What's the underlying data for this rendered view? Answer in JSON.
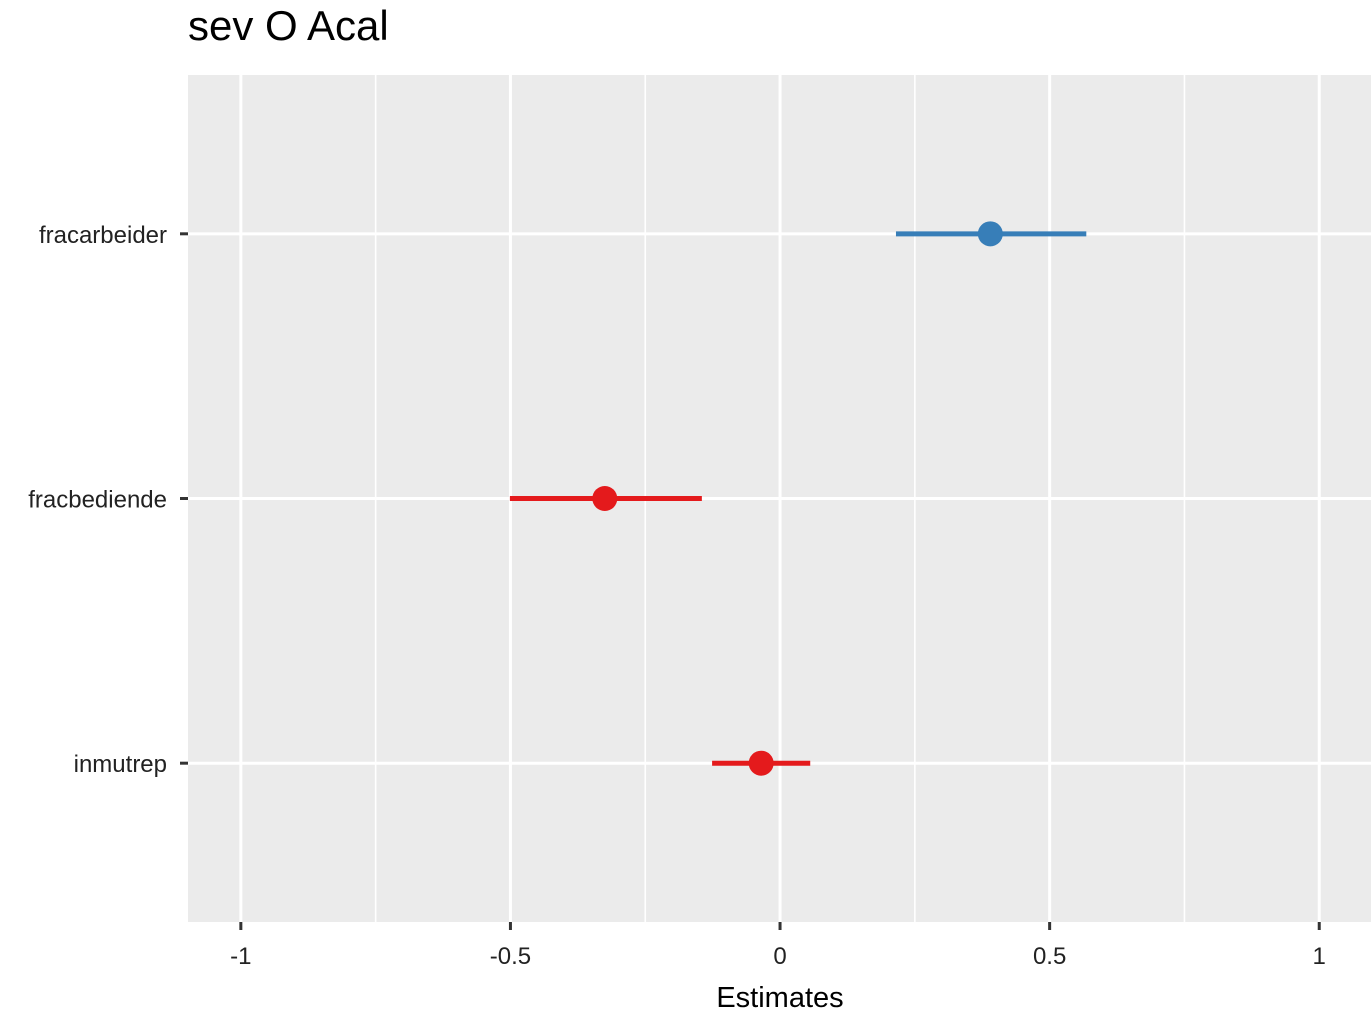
{
  "chart_data": {
    "type": "scatter",
    "subtype": "forest-plot",
    "title": "sev O Acal",
    "xlabel": "Estimates",
    "ylabel": "",
    "xlim": [
      -1.098,
      1.096
    ],
    "xticks": [
      -1,
      -0.5,
      0,
      0.5,
      1
    ],
    "xtick_labels": [
      "-1",
      "-0.5",
      "0",
      "0.5",
      "1"
    ],
    "categories": [
      "fracarbeider",
      "fracbediende",
      "inmutrep"
    ],
    "estimates": [
      0.39,
      -0.325,
      -0.035
    ],
    "ci_low": [
      0.215,
      -0.501,
      -0.126
    ],
    "ci_high": [
      0.568,
      -0.145,
      0.056
    ],
    "point_colors": [
      "#377EB8",
      "#E41A1C",
      "#E41A1C"
    ],
    "grid": true,
    "legend": "none",
    "panel_bg": "#EBEBEB"
  }
}
